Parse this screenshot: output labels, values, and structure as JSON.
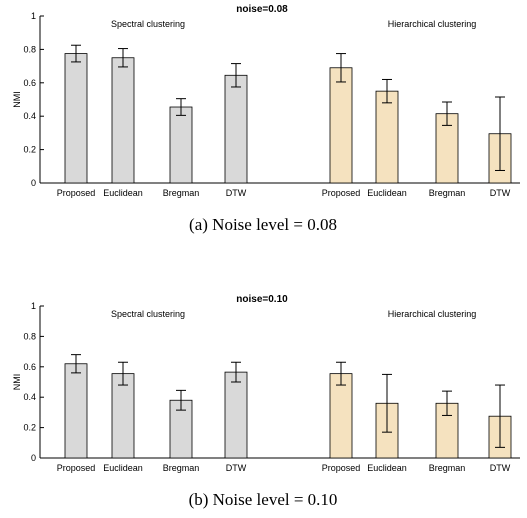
{
  "chart_data": [
    {
      "type": "bar",
      "title": "noise=0.08",
      "ylabel": "NMI",
      "ylim": [
        0,
        1
      ],
      "yticks": [
        "0",
        "0.2",
        "0.4",
        "0.6",
        "0.8",
        "1"
      ],
      "grid": false,
      "groups": [
        {
          "label": "Spectral clustering",
          "color": "#d9d9d9",
          "categories": [
            "Proposed",
            "Euclidean",
            "Bregman",
            "DTW"
          ],
          "values": [
            0.775,
            0.75,
            0.455,
            0.645
          ],
          "errors": [
            0.05,
            0.055,
            0.05,
            0.07
          ]
        },
        {
          "label": "Hierarchical clustering",
          "color": "#f5e2bf",
          "categories": [
            "Proposed",
            "Euclidean",
            "Bregman",
            "DTW"
          ],
          "values": [
            0.69,
            0.55,
            0.415,
            0.295
          ],
          "errors": [
            0.085,
            0.07,
            0.07,
            0.22
          ]
        }
      ],
      "caption": "(a) Noise level = 0.08"
    },
    {
      "type": "bar",
      "title": "noise=0.10",
      "ylabel": "NMI",
      "ylim": [
        0,
        1
      ],
      "yticks": [
        "0",
        "0.2",
        "0.4",
        "0.6",
        "0.8",
        "1"
      ],
      "grid": false,
      "groups": [
        {
          "label": "Spectral clustering",
          "color": "#d9d9d9",
          "categories": [
            "Proposed",
            "Euclidean",
            "Bregman",
            "DTW"
          ],
          "values": [
            0.62,
            0.555,
            0.38,
            0.565
          ],
          "errors": [
            0.06,
            0.075,
            0.065,
            0.065
          ]
        },
        {
          "label": "Hierarchical clustering",
          "color": "#f5e2bf",
          "categories": [
            "Proposed",
            "Euclidean",
            "Bregman",
            "DTW"
          ],
          "values": [
            0.555,
            0.36,
            0.36,
            0.275
          ],
          "errors": [
            0.075,
            0.19,
            0.08,
            0.205
          ]
        }
      ],
      "caption": "(b) Noise level = 0.10"
    }
  ]
}
